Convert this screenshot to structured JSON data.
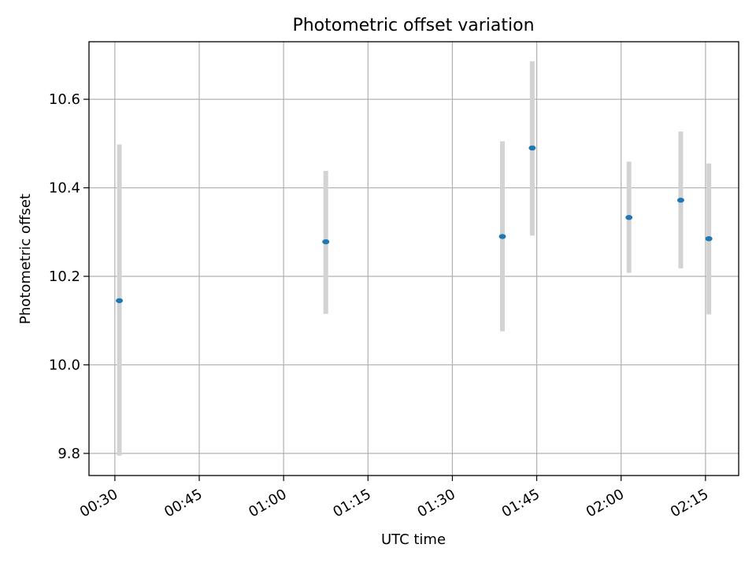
{
  "chart_data": {
    "type": "scatter",
    "title": "Photometric offset variation",
    "xlabel": "UTC time",
    "ylabel": "Photometric offset",
    "x_ticks": [
      "00:30",
      "00:45",
      "01:00",
      "01:15",
      "01:30",
      "01:45",
      "02:00",
      "02:15"
    ],
    "y_ticks": [
      "9.8",
      "10.0",
      "10.2",
      "10.4",
      "10.6"
    ],
    "xlim": [
      "00:25.4",
      "02:20.9"
    ],
    "ylim": [
      9.75,
      10.73
    ],
    "grid": true,
    "series": [
      {
        "points": [
          {
            "x": "00:30.8",
            "y": 10.145,
            "err_low": 9.795,
            "err_high": 10.498
          },
          {
            "x": "01:07.5",
            "y": 10.278,
            "err_low": 10.115,
            "err_high": 10.438
          },
          {
            "x": "01:38.9",
            "y": 10.29,
            "err_low": 10.076,
            "err_high": 10.505
          },
          {
            "x": "01:44.2",
            "y": 10.49,
            "err_low": 10.292,
            "err_high": 10.686
          },
          {
            "x": "02:01.4",
            "y": 10.333,
            "err_low": 10.208,
            "err_high": 10.459
          },
          {
            "x": "02:10.6",
            "y": 10.372,
            "err_low": 10.218,
            "err_high": 10.527
          },
          {
            "x": "02:15.6",
            "y": 10.285,
            "err_low": 10.114,
            "err_high": 10.455
          }
        ]
      }
    ],
    "colors": {
      "marker": "#1f77b4",
      "errorbar": "#d3d3d3",
      "grid": "#b0b0b0",
      "axes": "#000000"
    }
  }
}
